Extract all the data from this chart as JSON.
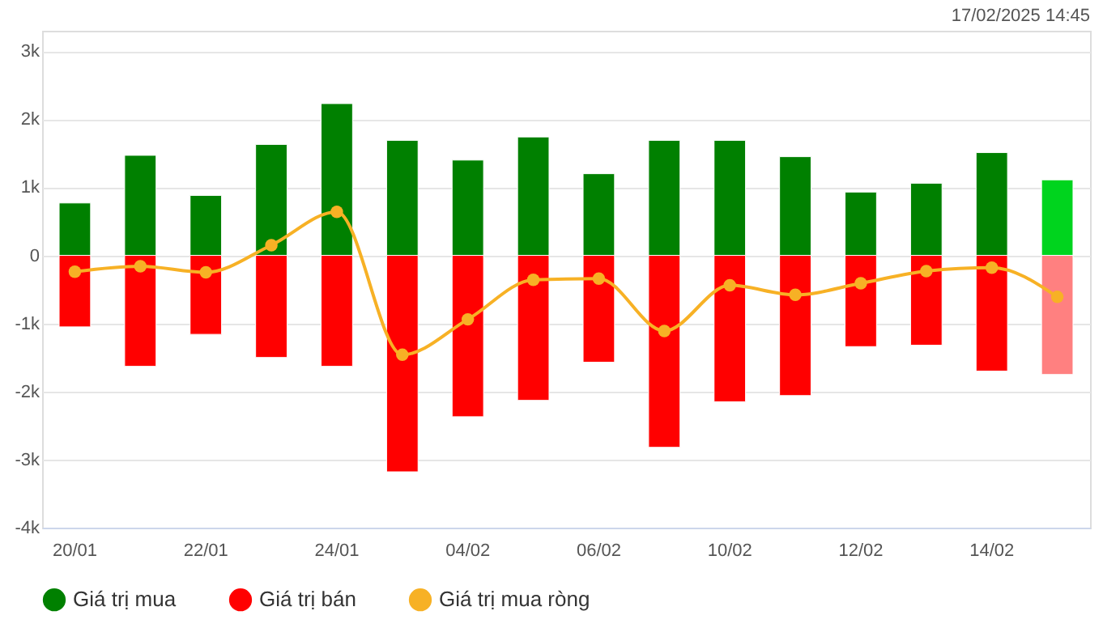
{
  "chart_data": {
    "type": "bar",
    "stacked": true,
    "categories": [
      "20/01",
      null,
      "22/01",
      null,
      "24/01",
      null,
      "04/02",
      null,
      "06/02",
      null,
      "10/02",
      null,
      "12/02",
      null,
      "14/02",
      null
    ],
    "series": [
      {
        "name": "Giá trị mua",
        "type": "bar",
        "color": "#008000",
        "colors": [
          "#008000",
          "#008000",
          "#008000",
          "#008000",
          "#008000",
          "#008000",
          "#008000",
          "#008000",
          "#008000",
          "#008000",
          "#008000",
          "#008000",
          "#008000",
          "#008000",
          "#008000",
          "#00d41e"
        ],
        "values": [
          0.77,
          1.47,
          0.88,
          1.63,
          2.23,
          1.69,
          1.4,
          1.74,
          1.2,
          1.69,
          1.69,
          1.45,
          0.93,
          1.06,
          1.51,
          1.11
        ]
      },
      {
        "name": "Giá trị bán",
        "type": "bar",
        "color": "#ff0000",
        "colors": [
          "#ff0000",
          "#ff0000",
          "#ff0000",
          "#ff0000",
          "#ff0000",
          "#ff0000",
          "#ff0000",
          "#ff0000",
          "#ff0000",
          "#ff0000",
          "#ff0000",
          "#ff0000",
          "#ff0000",
          "#ff0000",
          "#ff0000",
          "#ff8080"
        ],
        "values": [
          -1.05,
          -1.63,
          -1.16,
          -1.5,
          -1.63,
          -3.18,
          -2.37,
          -2.13,
          -1.57,
          -2.82,
          -2.15,
          -2.06,
          -1.34,
          -1.32,
          -1.7,
          -1.75
        ]
      },
      {
        "name": "Giá trị mua ròng",
        "type": "line",
        "color": "#f7b125",
        "values": [
          -0.24,
          -0.16,
          -0.25,
          0.15,
          0.64,
          -1.46,
          -0.94,
          -0.36,
          -0.34,
          -1.11,
          -0.44,
          -0.58,
          -0.41,
          -0.23,
          -0.18,
          -0.61
        ]
      }
    ],
    "ylim": [
      -4,
      3.3
    ],
    "yticks": [
      {
        "value": -4,
        "label": "-4k"
      },
      {
        "value": -3,
        "label": "-3k"
      },
      {
        "value": -2,
        "label": "-2k"
      },
      {
        "value": -1,
        "label": "-1k"
      },
      0,
      {
        "value": 1,
        "label": "1k"
      },
      {
        "value": 2,
        "label": "2k"
      },
      {
        "value": 3,
        "label": "3k"
      }
    ],
    "grid": "y",
    "legend": "bottom",
    "marker": "circle",
    "line_style": "solid",
    "annotations": [
      "17/02/2025 14:45"
    ]
  }
}
